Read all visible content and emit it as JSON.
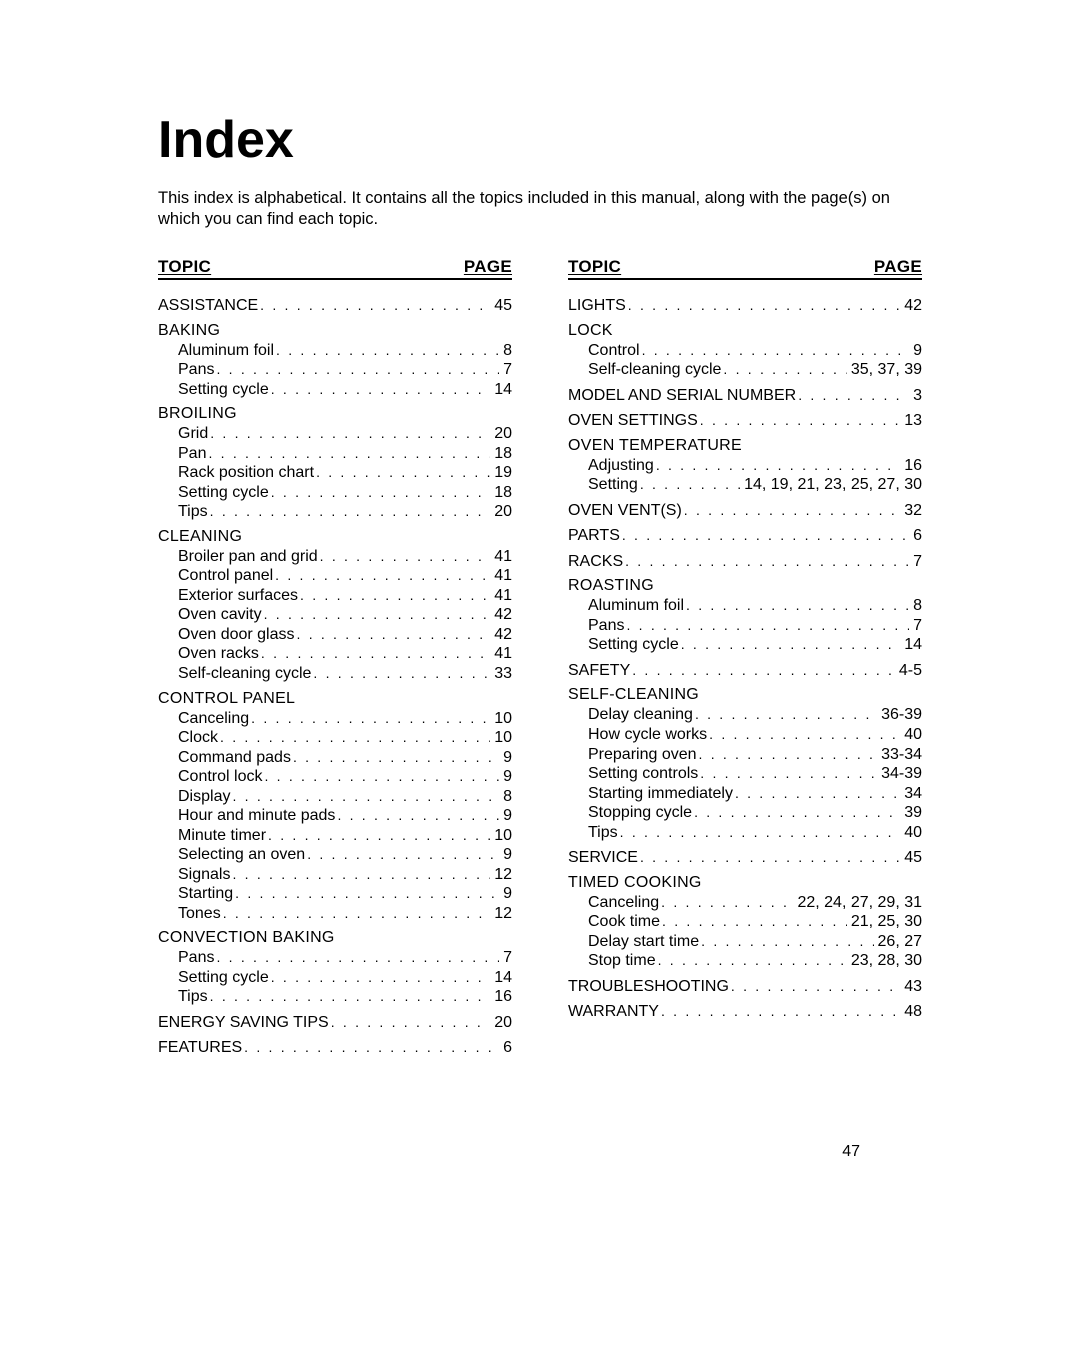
{
  "title": "Index",
  "intro": "This index is alphabetical. It contains all the topics included in this manual, along with the page(s) on which you can find each topic.",
  "header_topic": "TOPIC",
  "header_page": "PAGE",
  "page_number": "47",
  "dot_fill": ". . . . . . . . . . . . . . . . . . . . . . . . . . . . . . . . . . . . . . . . . . . . . . . . . . . . . . . . . . . . . . . . . . . . . . . . . . . . . . . . . . . . . . . . . . . . . . . . . . . . . . . . . . . . . . . .",
  "columns": [
    [
      {
        "type": "entry-top",
        "label": "ASSISTANCE",
        "pages": "45"
      },
      {
        "type": "section",
        "label": "BAKING"
      },
      {
        "type": "entry-sub",
        "label": "Aluminum foil",
        "pages": "8"
      },
      {
        "type": "entry-sub",
        "label": "Pans",
        "pages": "7"
      },
      {
        "type": "entry-sub",
        "label": "Setting cycle",
        "pages": "14"
      },
      {
        "type": "section",
        "label": "BROILING"
      },
      {
        "type": "entry-sub",
        "label": "Grid",
        "pages": "20"
      },
      {
        "type": "entry-sub",
        "label": "Pan",
        "pages": "18"
      },
      {
        "type": "entry-sub",
        "label": "Rack position chart",
        "pages": "19"
      },
      {
        "type": "entry-sub",
        "label": "Setting cycle",
        "pages": "18"
      },
      {
        "type": "entry-sub",
        "label": "Tips",
        "pages": "20"
      },
      {
        "type": "section",
        "label": "CLEANING"
      },
      {
        "type": "entry-sub",
        "label": "Broiler pan and grid",
        "pages": "41"
      },
      {
        "type": "entry-sub",
        "label": "Control panel",
        "pages": "41"
      },
      {
        "type": "entry-sub",
        "label": "Exterior surfaces",
        "pages": "41"
      },
      {
        "type": "entry-sub",
        "label": "Oven cavity",
        "pages": "42"
      },
      {
        "type": "entry-sub",
        "label": "Oven door glass",
        "pages": "42"
      },
      {
        "type": "entry-sub",
        "label": "Oven racks",
        "pages": "41"
      },
      {
        "type": "entry-sub",
        "label": "Self-cleaning cycle",
        "pages": "33"
      },
      {
        "type": "section",
        "label": "CONTROL PANEL"
      },
      {
        "type": "entry-sub",
        "label": "Canceling",
        "pages": "10"
      },
      {
        "type": "entry-sub",
        "label": "Clock",
        "pages": "10"
      },
      {
        "type": "entry-sub",
        "label": "Command pads",
        "pages": "9"
      },
      {
        "type": "entry-sub",
        "label": "Control lock",
        "pages": "9"
      },
      {
        "type": "entry-sub",
        "label": "Display",
        "pages": "8"
      },
      {
        "type": "entry-sub",
        "label": "Hour and minute pads",
        "pages": "9"
      },
      {
        "type": "entry-sub",
        "label": "Minute timer",
        "pages": "10"
      },
      {
        "type": "entry-sub",
        "label": "Selecting an oven",
        "pages": "9"
      },
      {
        "type": "entry-sub",
        "label": "Signals",
        "pages": "12"
      },
      {
        "type": "entry-sub",
        "label": "Starting",
        "pages": "9"
      },
      {
        "type": "entry-sub",
        "label": "Tones",
        "pages": "12"
      },
      {
        "type": "section",
        "label": "CONVECTION BAKING"
      },
      {
        "type": "entry-sub",
        "label": "Pans",
        "pages": "7"
      },
      {
        "type": "entry-sub",
        "label": "Setting cycle",
        "pages": "14"
      },
      {
        "type": "entry-sub",
        "label": "Tips",
        "pages": "16"
      },
      {
        "type": "entry-top",
        "label": "ENERGY SAVING TIPS",
        "pages": "20"
      },
      {
        "type": "entry-top",
        "label": "FEATURES",
        "pages": "6"
      }
    ],
    [
      {
        "type": "entry-top",
        "label": "LIGHTS",
        "pages": "42"
      },
      {
        "type": "section",
        "label": "LOCK"
      },
      {
        "type": "entry-sub",
        "label": "Control",
        "pages": "9"
      },
      {
        "type": "entry-sub",
        "label": "Self-cleaning cycle",
        "pages": "35, 37, 39"
      },
      {
        "type": "entry-top",
        "label": "MODEL AND SERIAL NUMBER",
        "pages": "3"
      },
      {
        "type": "entry-top",
        "label": "OVEN SETTINGS",
        "pages": "13"
      },
      {
        "type": "section",
        "label": "OVEN TEMPERATURE"
      },
      {
        "type": "entry-sub",
        "label": "Adjusting",
        "pages": "16"
      },
      {
        "type": "entry-sub",
        "label": "Setting",
        "pages": "14, 19, 21, 23, 25, 27, 30"
      },
      {
        "type": "entry-top",
        "label": "OVEN VENT(S)",
        "pages": "32"
      },
      {
        "type": "entry-top",
        "label": "PARTS",
        "pages": "6"
      },
      {
        "type": "entry-top",
        "label": "RACKS",
        "pages": "7"
      },
      {
        "type": "section",
        "label": "ROASTING"
      },
      {
        "type": "entry-sub",
        "label": "Aluminum foil",
        "pages": "8"
      },
      {
        "type": "entry-sub",
        "label": "Pans",
        "pages": "7"
      },
      {
        "type": "entry-sub",
        "label": "Setting cycle",
        "pages": "14"
      },
      {
        "type": "entry-top",
        "label": "SAFETY",
        "pages": "4-5"
      },
      {
        "type": "section",
        "label": "SELF-CLEANING"
      },
      {
        "type": "entry-sub",
        "label": "Delay cleaning",
        "pages": "36-39"
      },
      {
        "type": "entry-sub",
        "label": "How cycle works",
        "pages": "40"
      },
      {
        "type": "entry-sub",
        "label": "Preparing oven",
        "pages": "33-34"
      },
      {
        "type": "entry-sub",
        "label": "Setting controls",
        "pages": "34-39"
      },
      {
        "type": "entry-sub",
        "label": "Starting immediately",
        "pages": "34"
      },
      {
        "type": "entry-sub",
        "label": "Stopping cycle",
        "pages": "39"
      },
      {
        "type": "entry-sub",
        "label": "Tips",
        "pages": "40"
      },
      {
        "type": "entry-top",
        "label": "SERVICE",
        "pages": "45"
      },
      {
        "type": "section",
        "label": "TIMED COOKING"
      },
      {
        "type": "entry-sub",
        "label": "Canceling",
        "pages": "22, 24, 27, 29, 31"
      },
      {
        "type": "entry-sub",
        "label": "Cook time",
        "pages": "21, 25, 30"
      },
      {
        "type": "entry-sub",
        "label": "Delay start time",
        "pages": "26, 27"
      },
      {
        "type": "entry-sub",
        "label": "Stop time",
        "pages": "23, 28, 30"
      },
      {
        "type": "entry-top",
        "label": "TROUBLESHOOTING",
        "pages": "43"
      },
      {
        "type": "entry-top",
        "label": "WARRANTY",
        "pages": "48"
      }
    ]
  ]
}
